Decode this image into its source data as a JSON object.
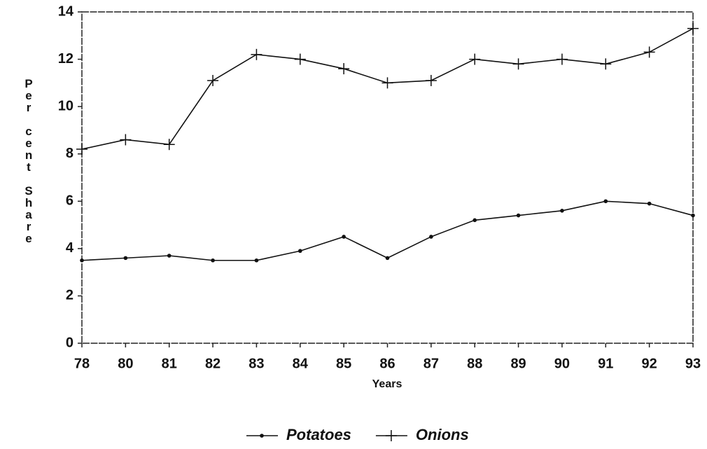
{
  "chart_data": {
    "type": "line",
    "y_label": "Per cent Share",
    "x_label": "Years",
    "categories": [
      "78",
      "80",
      "81",
      "82",
      "83",
      "84",
      "85",
      "86",
      "87",
      "88",
      "89",
      "90",
      "91",
      "92",
      "93"
    ],
    "series": [
      {
        "name": "Potatoes",
        "color": "#111111",
        "marker": "dot",
        "values": [
          3.5,
          3.6,
          3.7,
          3.5,
          3.5,
          3.9,
          4.5,
          3.6,
          4.5,
          5.2,
          5.4,
          5.6,
          6.0,
          5.9,
          5.4
        ]
      },
      {
        "name": "Onions",
        "color": "#111111",
        "marker": "plus",
        "values": [
          8.2,
          8.6,
          8.4,
          11.1,
          12.2,
          12.0,
          11.6,
          11.0,
          11.1,
          12.0,
          11.8,
          12.0,
          11.8,
          12.3,
          13.3
        ]
      }
    ],
    "ylim": [
      0,
      14
    ],
    "yticks": [
      0,
      2,
      4,
      6,
      8,
      10,
      12,
      14
    ],
    "grid": false,
    "legend": "bottom"
  }
}
